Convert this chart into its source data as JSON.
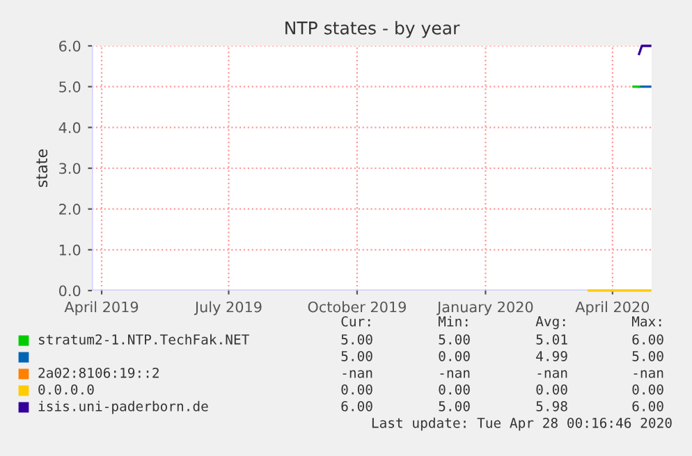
{
  "chart_data": {
    "type": "line",
    "title": "NTP states - by year",
    "ylabel": "state",
    "xlim": [
      "2019-03-25",
      "2020-04-29"
    ],
    "xticks": [
      {
        "value": "2019-04-01",
        "label": "April 2019"
      },
      {
        "value": "2019-07-01",
        "label": "July 2019"
      },
      {
        "value": "2019-10-01",
        "label": "October 2019"
      },
      {
        "value": "2020-01-01",
        "label": "January 2020"
      },
      {
        "value": "2020-04-01",
        "label": "April 2020"
      }
    ],
    "ylim": [
      0,
      6.0
    ],
    "yticks": [
      {
        "value": 0,
        "label": "0.0"
      },
      {
        "value": 1,
        "label": "1.0"
      },
      {
        "value": 2,
        "label": "2.0"
      },
      {
        "value": 3,
        "label": "3.0"
      },
      {
        "value": 4,
        "label": "4.0"
      },
      {
        "value": 5,
        "label": "5.0"
      },
      {
        "value": 6,
        "label": "6.0"
      }
    ],
    "grid": true,
    "legend": "bottom",
    "series": [
      {
        "name": "stratum2-1.NTP.TechFak.NET",
        "color": "#00cc00",
        "x": [
          "2020-04-16",
          "2020-04-20"
        ],
        "values": [
          5.0,
          5.0
        ]
      },
      {
        "color": "#0066b3",
        "x": [
          "2020-04-20",
          "2020-04-28"
        ],
        "values": [
          5.0,
          5.0
        ]
      },
      {
        "name": "2a02:8106:19::2",
        "color": "#ff8000"
      },
      {
        "name": "0.0.0.0",
        "color": "#ffcc00",
        "x": [
          "2020-03-15",
          "2020-04-28"
        ],
        "values": [
          0.0,
          0.0
        ]
      },
      {
        "name": "isis.uni-paderborn.de",
        "color": "#330099",
        "x": [
          "2020-04-20",
          "2020-04-22",
          "2020-04-28"
        ],
        "values": [
          5.8,
          6.0,
          6.0
        ]
      }
    ],
    "annotations": [
      "Cur:",
      "Min:",
      "Avg:",
      "Max:",
      "5.00",
      "5.00",
      "5.01",
      "6.00",
      "5.00",
      "0.00",
      "4.99",
      "5.00",
      "-nan",
      "-nan",
      "-nan",
      "-nan",
      "0.00",
      "0.00",
      "0.00",
      "0.00",
      "6.00",
      "5.00",
      "5.98",
      "6.00",
      "Last update: Tue Apr 28 00:16:46 2020"
    ]
  }
}
